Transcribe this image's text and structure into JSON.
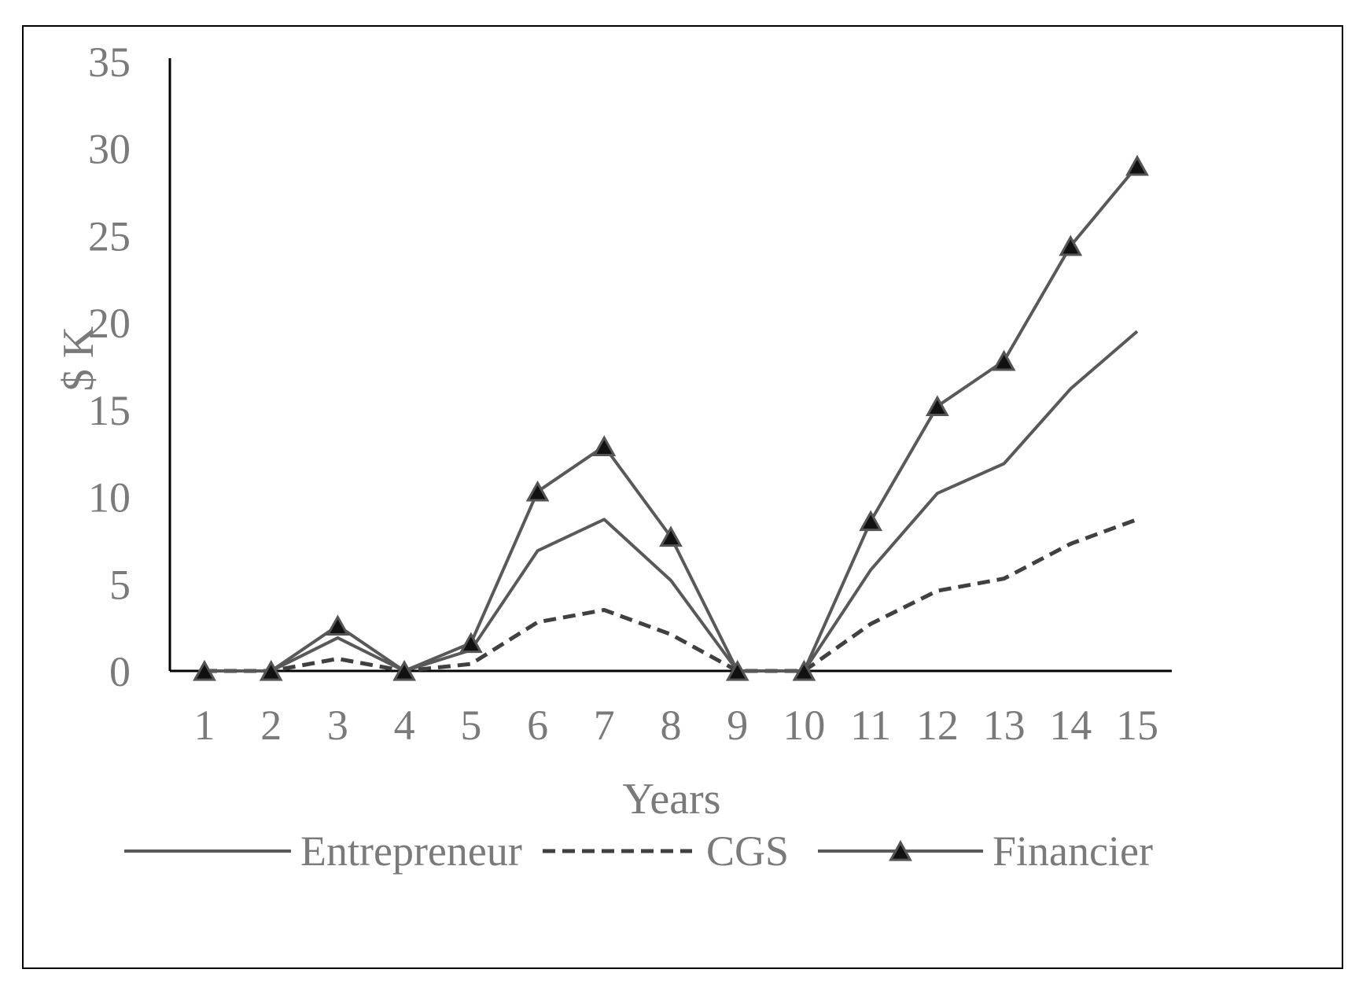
{
  "chart_data": {
    "type": "line",
    "title": "",
    "xlabel": "Years",
    "ylabel": "$ K",
    "categories": [
      "1",
      "2",
      "3",
      "4",
      "5",
      "6",
      "7",
      "8",
      "9",
      "10",
      "11",
      "12",
      "13",
      "14",
      "15"
    ],
    "ylim": [
      0,
      35
    ],
    "yticks": [
      0,
      5,
      10,
      15,
      20,
      25,
      30,
      35
    ],
    "grid": false,
    "legend": "bottom",
    "series": [
      {
        "name": "Entrepreneur",
        "style": "solid",
        "marker": "none",
        "color": "#595959",
        "values": [
          0,
          0,
          1.9,
          0,
          1.2,
          6.9,
          8.7,
          5.2,
          0,
          0,
          5.8,
          10.2,
          11.9,
          16.2,
          19.5
        ]
      },
      {
        "name": "CGS",
        "style": "dashed",
        "marker": "none",
        "color": "#404040",
        "values": [
          0,
          0,
          0.7,
          0,
          0.4,
          2.8,
          3.5,
          2.1,
          0,
          0,
          2.7,
          4.6,
          5.3,
          7.3,
          8.7
        ]
      },
      {
        "name": "Financier",
        "style": "solid",
        "marker": "triangle",
        "color": "#595959",
        "values": [
          0,
          0,
          2.6,
          0,
          1.6,
          10.3,
          12.9,
          7.7,
          0,
          0,
          8.6,
          15.2,
          17.8,
          24.4,
          29.0
        ]
      }
    ]
  }
}
